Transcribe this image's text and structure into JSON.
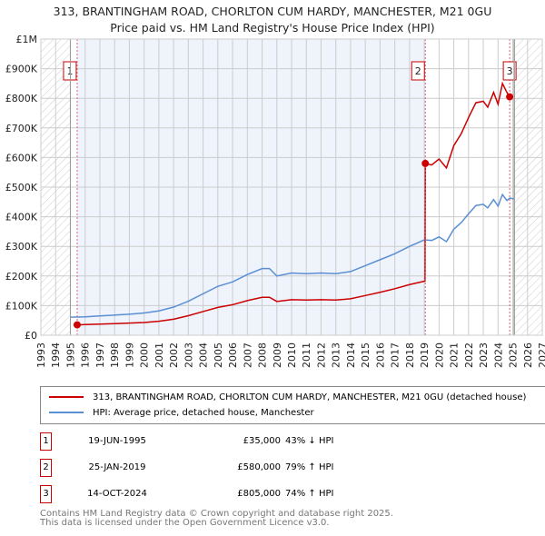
{
  "title": "313, BRANTINGHAM ROAD, CHORLTON CUM HARDY, MANCHESTER, M21 0GU",
  "subtitle": "Price paid vs. HM Land Registry's House Price Index (HPI)",
  "chart_data": {
    "type": "line",
    "title": "313, BRANTINGHAM ROAD, CHORLTON CUM HARDY, MANCHESTER, M21 0GU",
    "xlim": [
      1993,
      2027
    ],
    "ylim": [
      0,
      1000000
    ],
    "x_ticks": [
      "1993",
      "1994",
      "1995",
      "1996",
      "1997",
      "1998",
      "1999",
      "2000",
      "2001",
      "2002",
      "2003",
      "2004",
      "2005",
      "2006",
      "2007",
      "2008",
      "2009",
      "2010",
      "2011",
      "2012",
      "2013",
      "2014",
      "2015",
      "2016",
      "2017",
      "2018",
      "2019",
      "2020",
      "2021",
      "2022",
      "2023",
      "2024",
      "2025",
      "2026",
      "2027"
    ],
    "y_ticks": [
      {
        "v": 0,
        "l": "£0"
      },
      {
        "v": 100000,
        "l": "£100K"
      },
      {
        "v": 200000,
        "l": "£200K"
      },
      {
        "v": 300000,
        "l": "£300K"
      },
      {
        "v": 400000,
        "l": "£400K"
      },
      {
        "v": 500000,
        "l": "£500K"
      },
      {
        "v": 600000,
        "l": "£600K"
      },
      {
        "v": 700000,
        "l": "£700K"
      },
      {
        "v": 800000,
        "l": "£800K"
      },
      {
        "v": 900000,
        "l": "£900K"
      },
      {
        "v": 1000000,
        "l": "£1M"
      }
    ],
    "grid": true,
    "series": [
      {
        "name": "313, BRANTINGHAM ROAD, CHORLTON CUM HARDY, MANCHESTER, M21 0GU (detached house)",
        "color": "#cc0000",
        "x": [
          1995.46,
          1996,
          1997,
          1998,
          1999,
          2000,
          2001,
          2002,
          2003,
          2004,
          2005,
          2006,
          2007,
          2008,
          2008.5,
          2009,
          2010,
          2011,
          2012,
          2013,
          2014,
          2015,
          2016,
          2017,
          2018,
          2019.05,
          2019.07,
          2019.5,
          2020,
          2020.5,
          2021,
          2021.5,
          2022,
          2022.5,
          2023,
          2023.3,
          2023.7,
          2024,
          2024.3,
          2024.6,
          2024.79
        ],
        "y": [
          35000,
          36000,
          37500,
          39000,
          41000,
          43000,
          47000,
          54000,
          66000,
          80000,
          94000,
          103000,
          117000,
          128000,
          128000,
          114000,
          120000,
          119000,
          120000,
          119000,
          123000,
          134000,
          145000,
          157000,
          171000,
          183000,
          580000,
          575000,
          595000,
          565000,
          640000,
          680000,
          735000,
          785000,
          790000,
          770000,
          820000,
          780000,
          850000,
          820000,
          805000
        ]
      },
      {
        "name": "HPI: Average price, detached house, Manchester",
        "color": "#5b8fd4",
        "x": [
          1995,
          1996,
          1997,
          1998,
          1999,
          2000,
          2001,
          2002,
          2003,
          2004,
          2005,
          2006,
          2007,
          2008,
          2008.5,
          2009,
          2010,
          2011,
          2012,
          2013,
          2014,
          2015,
          2016,
          2017,
          2018,
          2019,
          2019.5,
          2020,
          2020.5,
          2021,
          2021.5,
          2022,
          2022.5,
          2023,
          2023.3,
          2023.7,
          2024,
          2024.3,
          2024.6,
          2024.8,
          2025.1
        ],
        "y": [
          61000,
          62000,
          65000,
          68000,
          71000,
          75000,
          82000,
          95000,
          115000,
          140000,
          165000,
          180000,
          205000,
          225000,
          225000,
          200000,
          210000,
          208000,
          210000,
          208000,
          215000,
          235000,
          255000,
          275000,
          300000,
          322000,
          320000,
          332000,
          316000,
          358000,
          380000,
          410000,
          438000,
          442000,
          430000,
          458000,
          436000,
          475000,
          455000,
          463000,
          460000
        ]
      }
    ],
    "sales": [
      {
        "n": "1",
        "x": 1995.46,
        "y": 35000
      },
      {
        "n": "2",
        "x": 2019.07,
        "y": 580000
      },
      {
        "n": "3",
        "x": 2024.79,
        "y": 805000
      }
    ]
  },
  "legend": {
    "red": "313, BRANTINGHAM ROAD, CHORLTON CUM HARDY, MANCHESTER, M21 0GU (detached house)",
    "blue": "HPI: Average price, detached house, Manchester"
  },
  "table": [
    {
      "n": "1",
      "date": "19-JUN-1995",
      "price": "£35,000",
      "hpi": "43% ↓ HPI"
    },
    {
      "n": "2",
      "date": "25-JAN-2019",
      "price": "£580,000",
      "hpi": "79% ↑ HPI"
    },
    {
      "n": "3",
      "date": "14-OCT-2024",
      "price": "£805,000",
      "hpi": "74% ↑ HPI"
    }
  ],
  "footer": {
    "line1": "Contains HM Land Registry data © Crown copyright and database right 2025.",
    "line2": "This data is licensed under the Open Government Licence v3.0."
  }
}
